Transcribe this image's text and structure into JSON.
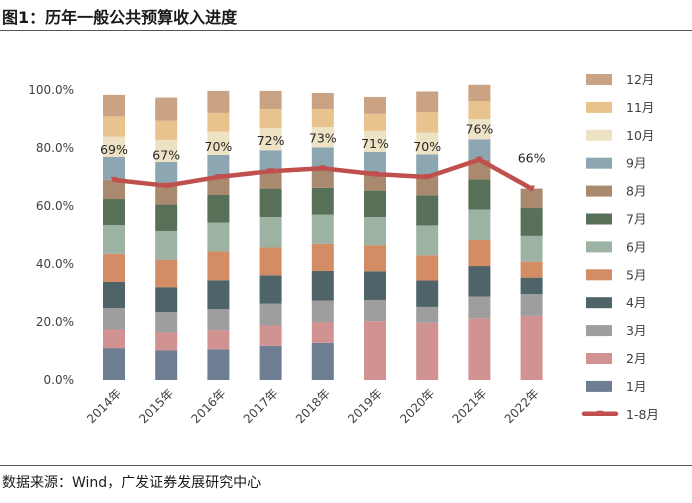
{
  "title": "图1：历年一般公共预算收入进度",
  "source": "数据来源：Wind，广发证券发展研究中心",
  "chart_data": {
    "type": "bar",
    "stacked": true,
    "title": "历年一般公共预算收入进度",
    "categories": [
      "2014年",
      "2015年",
      "2016年",
      "2017年",
      "2018年",
      "2019年",
      "2020年",
      "2021年",
      "2022年"
    ],
    "ylim": [
      0,
      100
    ],
    "yticks": [
      0,
      20,
      40,
      60,
      80,
      100
    ],
    "ytick_labels": [
      "0.0%",
      "20.0%",
      "40.0%",
      "60.0%",
      "80.0%",
      "100.0%"
    ],
    "legend_position": "right",
    "series": [
      {
        "name": "1月",
        "color": "#6F7D93",
        "values": [
          11.0,
          10.2,
          10.6,
          11.8,
          12.8,
          null,
          null,
          null,
          null
        ]
      },
      {
        "name": "2月",
        "color": "#D09392",
        "values": [
          6.4,
          6.2,
          6.6,
          7.0,
          7.2,
          20.3,
          19.7,
          21.3,
          22.1
        ]
      },
      {
        "name": "3月",
        "color": "#9E9E9E",
        "values": [
          7.4,
          7.0,
          7.2,
          7.5,
          7.4,
          7.3,
          5.5,
          7.5,
          7.5
        ]
      },
      {
        "name": "4月",
        "color": "#4E6468",
        "values": [
          9.0,
          8.6,
          10.0,
          9.8,
          10.2,
          9.9,
          9.1,
          10.5,
          5.7
        ]
      },
      {
        "name": "5月",
        "color": "#D38C63",
        "values": [
          9.7,
          9.4,
          9.9,
          9.6,
          9.4,
          9.0,
          8.7,
          9.0,
          5.5
        ]
      },
      {
        "name": "6月",
        "color": "#9CB2A3",
        "values": [
          9.9,
          10.0,
          10.0,
          10.5,
          10.0,
          9.7,
          10.3,
          10.5,
          8.9
        ]
      },
      {
        "name": "7月",
        "color": "#586F58",
        "values": [
          9.0,
          9.1,
          9.5,
          9.8,
          9.3,
          9.1,
          10.4,
          10.4,
          9.6
        ]
      },
      {
        "name": "8月",
        "color": "#A98A6E",
        "values": [
          6.6,
          6.5,
          6.2,
          6.0,
          6.7,
          6.0,
          6.3,
          6.8,
          6.7
        ]
      },
      {
        "name": "9月",
        "color": "#8DA7B2",
        "values": [
          7.9,
          8.2,
          7.6,
          7.2,
          7.2,
          7.4,
          7.8,
          7.0,
          null
        ]
      },
      {
        "name": "10月",
        "color": "#EEE2C5",
        "values": [
          7.0,
          7.6,
          8.0,
          7.6,
          7.0,
          7.2,
          7.5,
          7.0,
          null
        ]
      },
      {
        "name": "11月",
        "color": "#E8C38D",
        "values": [
          7.0,
          6.6,
          6.5,
          6.6,
          6.2,
          5.9,
          7.1,
          6.2,
          null
        ]
      },
      {
        "name": "12月",
        "color": "#C9A383",
        "values": [
          7.4,
          8.0,
          7.6,
          6.3,
          5.6,
          5.8,
          7.1,
          5.6,
          null
        ]
      }
    ],
    "line_series": {
      "name": "1-8月",
      "color": "#C0504D",
      "values": [
        69,
        67,
        70,
        72,
        73,
        71,
        70,
        76,
        66
      ],
      "data_labels": [
        "69%",
        "67%",
        "70%",
        "72%",
        "73%",
        "71%",
        "70%",
        "76%",
        "66%"
      ]
    }
  }
}
